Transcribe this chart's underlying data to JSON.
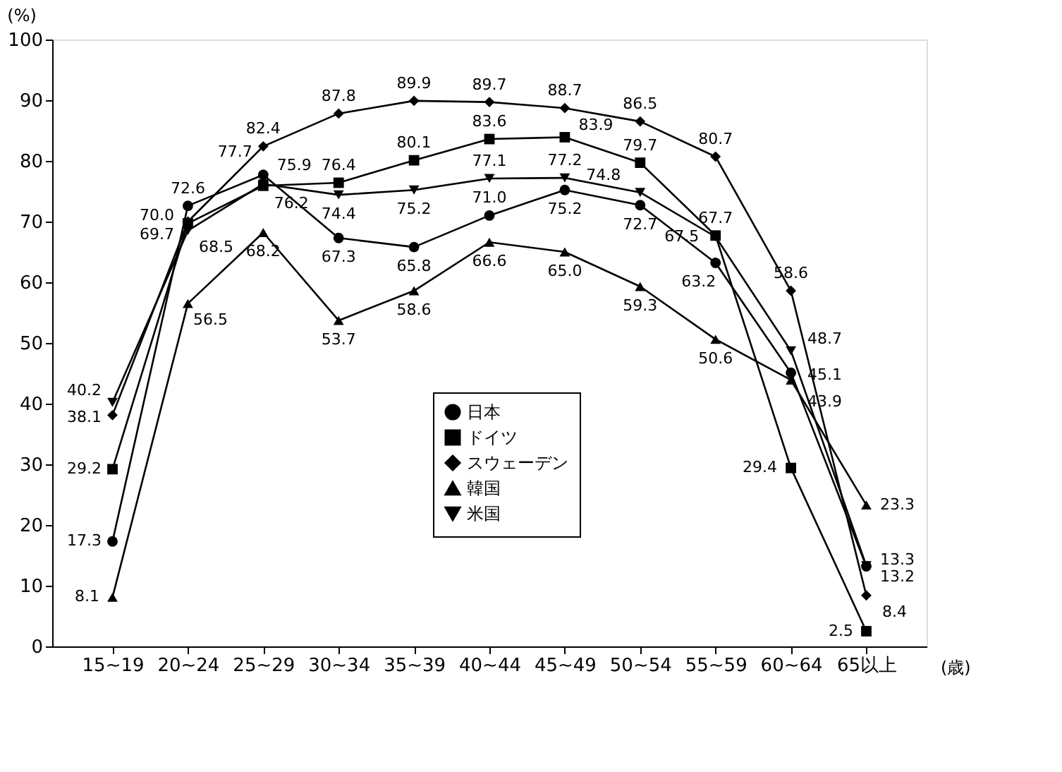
{
  "chart_data": {
    "type": "line",
    "ylabel": "(%)",
    "xlabel": "(歳)",
    "categories": [
      "15~19",
      "20~24",
      "25~29",
      "30~34",
      "35~39",
      "40~44",
      "45~49",
      "50~54",
      "55~59",
      "60~64",
      "65以上"
    ],
    "series": [
      {
        "name": "日本",
        "color": "#000000",
        "marker": "circle",
        "values": [
          17.3,
          72.6,
          77.7,
          67.3,
          65.8,
          71.0,
          75.2,
          72.7,
          63.2,
          45.1,
          13.2
        ],
        "value_labels": [
          "17.3",
          "72.6",
          "77.7",
          "67.3",
          "65.8",
          "71.0",
          "75.2",
          "72.7",
          "63.2",
          "45.1",
          "13.2"
        ]
      },
      {
        "name": "ドイツ",
        "color": "#000000",
        "marker": "square",
        "values": [
          29.2,
          69.7,
          75.9,
          76.4,
          80.1,
          83.6,
          83.9,
          79.7,
          67.7,
          29.4,
          2.5
        ],
        "value_labels": [
          "29.2",
          "69.7",
          "75.9",
          "76.4",
          "80.1",
          "83.6",
          "83.9",
          "79.7",
          "67.7",
          "29.4",
          "2.5"
        ]
      },
      {
        "name": "スウェーデン",
        "color": "#000000",
        "marker": "diamond",
        "values": [
          38.1,
          70.0,
          82.4,
          87.8,
          89.9,
          89.7,
          88.7,
          86.5,
          80.7,
          58.6,
          8.4
        ],
        "value_labels": [
          "38.1",
          "70.0",
          "82.4",
          "87.8",
          "89.9",
          "89.7",
          "88.7",
          "86.5",
          "80.7",
          "58.6",
          "8.4"
        ]
      },
      {
        "name": "韓国",
        "color": "#000000",
        "marker": "triangle",
        "values": [
          8.1,
          56.5,
          68.2,
          53.7,
          58.6,
          66.6,
          65.0,
          59.3,
          50.6,
          43.9,
          23.3
        ],
        "value_labels": [
          "8.1",
          "56.5",
          "68.2",
          "53.7",
          "58.6",
          "66.6",
          "65.0",
          "59.3",
          "50.6",
          "43.9",
          "23.3"
        ]
      },
      {
        "name": "米国",
        "color": "#000000",
        "marker": "triangle-down",
        "values": [
          40.2,
          68.5,
          76.2,
          74.4,
          75.2,
          77.1,
          77.2,
          74.8,
          67.5,
          48.7,
          13.3
        ],
        "value_labels": [
          "40.2",
          "68.5",
          "76.2",
          "74.4",
          "75.2",
          "77.1",
          "77.2",
          "74.8",
          "67.5",
          "48.7",
          "13.3"
        ]
      }
    ],
    "ylim": [
      0,
      100
    ],
    "yticks": [
      0,
      10,
      20,
      30,
      40,
      50,
      60,
      70,
      80,
      90,
      100
    ],
    "grid": false,
    "legend": "bottom"
  }
}
